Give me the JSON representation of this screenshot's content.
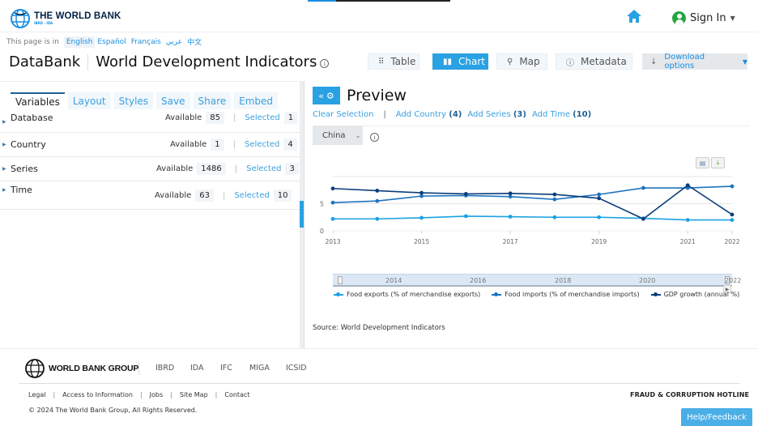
{
  "header": {
    "logo_title": "THE WORLD BANK",
    "logo_subtitle": "IBRD · IDA",
    "sign_in": "Sign In",
    "accent_color": "#1a8fe3"
  },
  "langbar": {
    "label": "This page is in",
    "languages": [
      "English",
      "Español",
      "Français",
      "عربي",
      "中文"
    ],
    "active": "English"
  },
  "title": {
    "databank": "DataBank",
    "database": "World Development Indicators",
    "info_icon": "i"
  },
  "view_buttons": {
    "table": "Table",
    "chart": "Chart",
    "map": "Map",
    "metadata": "Metadata",
    "download": "Download options",
    "active": "Chart"
  },
  "left_panel": {
    "tabs": [
      "Variables",
      "Layout",
      "Styles",
      "Save",
      "Share",
      "Embed"
    ],
    "active_tab": "Variables",
    "available_label": "Available",
    "selected_label": "Selected",
    "rows": [
      {
        "name": "Database",
        "available": "85",
        "selected": "1"
      },
      {
        "name": "Country",
        "available": "1",
        "selected": "4"
      },
      {
        "name": "Series",
        "available": "1486",
        "selected": "3"
      },
      {
        "name": "Time",
        "available": "63",
        "selected": "10"
      }
    ]
  },
  "preview": {
    "title": "Preview",
    "clear_selection": "Clear Selection",
    "add_country": "Add Country",
    "add_country_count": "(4)",
    "add_series": "Add Series",
    "add_series_count": "(3)",
    "add_time": "Add Time",
    "add_time_count": "(10)",
    "country_select": "China",
    "source": "Source: World Development Indicators"
  },
  "chart_data": {
    "type": "line",
    "title": "",
    "xlabel": "",
    "ylabel": "",
    "x": [
      2013,
      2014,
      2015,
      2016,
      2017,
      2018,
      2019,
      2020,
      2021,
      2022
    ],
    "x_tick_labels": [
      "2013",
      "2015",
      "2017",
      "2019",
      "2021",
      "2022"
    ],
    "y_tick_labels": [
      "0",
      "5"
    ],
    "ylim": [
      0,
      10
    ],
    "grid": true,
    "legend_position": "bottom",
    "series": [
      {
        "name": "Food exports (% of merchandise exports)",
        "color": "#1ba1e2",
        "values": [
          2.2,
          2.2,
          2.4,
          2.7,
          2.6,
          2.5,
          2.5,
          2.3,
          2.0,
          2.0
        ]
      },
      {
        "name": "Food imports (% of merchandise imports)",
        "color": "#1e73be",
        "values": [
          5.2,
          5.5,
          6.4,
          6.5,
          6.3,
          5.8,
          6.7,
          7.9,
          7.9,
          8.2
        ]
      },
      {
        "name": "GDP growth (annual %)",
        "color": "#0b3d7a",
        "values": [
          7.8,
          7.4,
          7.0,
          6.8,
          6.9,
          6.7,
          6.0,
          2.2,
          8.4,
          3.0
        ]
      }
    ],
    "navigator_labels": [
      "2014",
      "2016",
      "2018",
      "2020",
      "2022"
    ]
  },
  "footer": {
    "group_logo": "WORLD BANK GROUP",
    "orgs": [
      "IBRD",
      "IDA",
      "IFC",
      "MIGA",
      "ICSID"
    ],
    "links": [
      "Legal",
      "Access to Information",
      "Jobs",
      "Site Map",
      "Contact"
    ],
    "copyright": "© 2024 The World Bank Group, All Rights Reserved.",
    "hotline": "FRAUD & CORRUPTION HOTLINE",
    "help": "Help/Feedback"
  }
}
